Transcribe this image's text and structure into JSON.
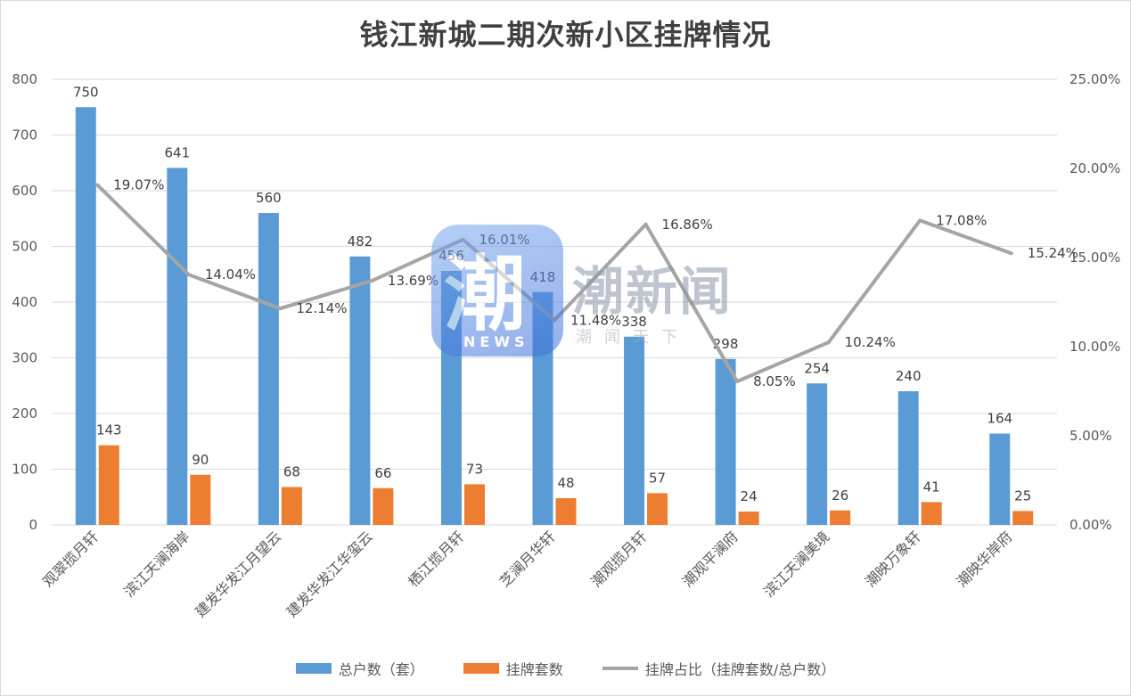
{
  "chart_data": {
    "type": "bar",
    "title": "钱江新城二期次新小区挂牌情况",
    "categories": [
      "观翠揽月轩",
      "滨江天澜海岸",
      "建发华发江月望云",
      "建发华发江华玺云",
      "栖江揽月轩",
      "芝澜月华轩",
      "潮观揽月轩",
      "潮观平澜府",
      "滨江天澜美境",
      "潮映万象轩",
      "潮映华岸府"
    ],
    "series": [
      {
        "name": "总户数（套）",
        "type": "bar",
        "axis": "left",
        "color": "#5b9bd5",
        "values": [
          750,
          641,
          560,
          482,
          456,
          418,
          338,
          298,
          254,
          240,
          164
        ]
      },
      {
        "name": "挂牌套数",
        "type": "bar",
        "axis": "left",
        "color": "#ed7d31",
        "values": [
          143,
          90,
          68,
          66,
          73,
          48,
          57,
          24,
          26,
          41,
          25
        ]
      },
      {
        "name": "挂牌占比（挂牌套数/总户数）",
        "type": "line",
        "axis": "right",
        "color": "#a5a5a5",
        "values": [
          19.07,
          14.04,
          12.14,
          13.69,
          16.01,
          11.48,
          16.86,
          8.05,
          10.24,
          17.08,
          15.24
        ],
        "labels": [
          "19.07%",
          "14.04%",
          "12.14%",
          "13.69%",
          "16.01%",
          "11.48%",
          "16.86%",
          "8.05%",
          "10.24%",
          "17.08%",
          "15.24%"
        ]
      }
    ],
    "y_left": {
      "min": 0,
      "max": 800,
      "ticks": [
        "0",
        "100",
        "200",
        "300",
        "400",
        "500",
        "600",
        "700",
        "800"
      ]
    },
    "y_right": {
      "min": 0,
      "max": 25,
      "ticks": [
        "0.00%",
        "5.00%",
        "10.00%",
        "15.00%",
        "20.00%",
        "25.00%"
      ]
    },
    "grid": true,
    "legend_position": "bottom"
  },
  "watermark": {
    "badge_char": "潮",
    "badge_text": "NEWS",
    "brand": "潮新闻",
    "slogan": "潮闻天下"
  }
}
